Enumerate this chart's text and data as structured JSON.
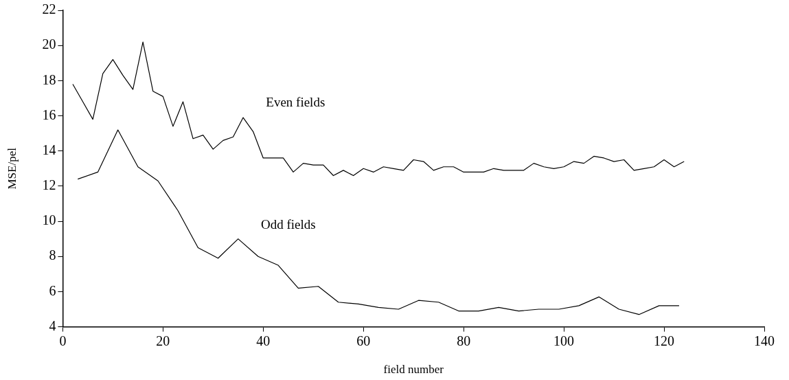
{
  "chart_data": {
    "type": "line",
    "xlabel": "field number",
    "ylabel": "MSE/pel",
    "xlim": [
      0,
      140
    ],
    "xticks": [
      0,
      20,
      40,
      60,
      80,
      100,
      120,
      140
    ],
    "ylim": [
      4,
      22
    ],
    "yticks": [
      4,
      6,
      8,
      10,
      12,
      14,
      16,
      18,
      20,
      22
    ],
    "grid": false,
    "legend": false,
    "marker": "none",
    "line_style": "solid",
    "series": [
      {
        "name": "Even fields",
        "color": "#000000",
        "x": [
          2,
          4,
          6,
          8,
          10,
          12,
          14,
          16,
          18,
          20,
          22,
          24,
          26,
          28,
          30,
          32,
          34,
          36,
          38,
          40,
          42,
          44,
          46,
          48,
          50,
          52,
          54,
          56,
          58,
          60,
          62,
          64,
          66,
          68,
          70,
          72,
          74,
          76,
          78,
          80,
          82,
          84,
          86,
          88,
          90,
          92,
          94,
          96,
          98,
          100,
          102,
          104,
          106,
          108,
          110,
          112,
          114,
          116,
          118,
          120,
          122,
          124
        ],
        "values": [
          17.8,
          16.8,
          15.8,
          18.4,
          19.2,
          18.3,
          17.5,
          20.2,
          17.4,
          17.1,
          15.4,
          16.8,
          14.7,
          14.9,
          14.1,
          14.6,
          14.8,
          15.9,
          15.1,
          13.6,
          13.6,
          13.6,
          12.8,
          13.3,
          13.2,
          13.2,
          12.6,
          12.9,
          12.6,
          13.0,
          12.8,
          13.1,
          13.0,
          12.9,
          13.5,
          13.4,
          12.9,
          13.1,
          13.1,
          12.8,
          12.8,
          12.8,
          13.0,
          12.9,
          12.9,
          12.9,
          13.3,
          13.1,
          13.0,
          13.1,
          13.4,
          13.3,
          13.7,
          13.6,
          13.4,
          13.5,
          12.9,
          13.0,
          13.1,
          13.5,
          13.1,
          13.4
        ]
      },
      {
        "name": "Odd fields",
        "color": "#000000",
        "x": [
          3,
          7,
          11,
          15,
          19,
          23,
          27,
          31,
          35,
          39,
          43,
          47,
          51,
          55,
          59,
          63,
          67,
          71,
          75,
          79,
          83,
          87,
          91,
          95,
          99,
          103,
          107,
          111,
          115,
          119,
          123
        ],
        "values": [
          12.4,
          12.8,
          15.2,
          13.1,
          12.3,
          10.6,
          8.5,
          7.9,
          9.0,
          8.0,
          7.5,
          6.2,
          6.3,
          5.4,
          5.3,
          5.1,
          5.0,
          5.5,
          5.4,
          4.9,
          4.9,
          5.1,
          4.9,
          5.0,
          5.0,
          5.2,
          5.7,
          5.0,
          4.7,
          5.2,
          5.2
        ]
      }
    ]
  }
}
